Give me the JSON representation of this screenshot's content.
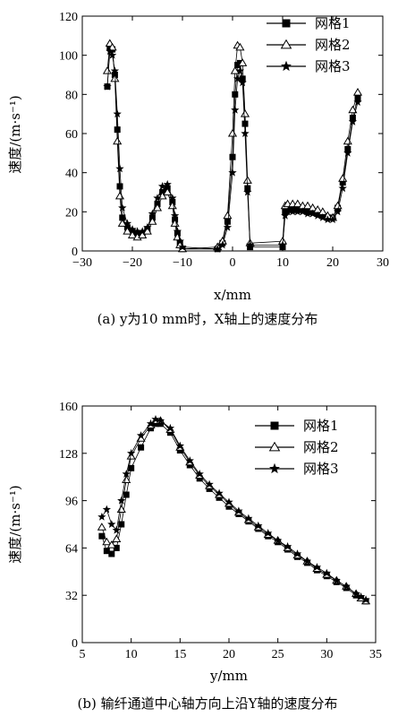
{
  "chart_data": [
    {
      "type": "scatter",
      "xlabel": "x/mm",
      "ylabel": "速度/(m·s⁻¹)",
      "caption": "(a)  y为10 mm时，X轴上的速度分布",
      "xlim": [
        -30,
        30
      ],
      "ylim": [
        0,
        120
      ],
      "xticks": [
        "−30",
        "−20",
        "−10",
        "0",
        "10",
        "20",
        "30"
      ],
      "yticks": [
        "0",
        "20",
        "40",
        "60",
        "80",
        "100",
        "120"
      ],
      "legend_position": "top-right",
      "series": [
        {
          "name": "网格1",
          "marker": "square",
          "x": [
            -25,
            -24.5,
            -24,
            -23.5,
            -23,
            -22.5,
            -22,
            -21,
            -20,
            -19,
            -18,
            -17,
            -16,
            -15,
            -14,
            -13,
            -12,
            -11.5,
            -11,
            -10.5,
            -10,
            -3,
            -2,
            -1,
            0,
            0.5,
            1,
            1.5,
            2,
            2.5,
            3,
            3.5,
            10,
            10.5,
            11,
            12,
            13,
            14,
            15,
            16,
            17,
            18,
            19,
            20,
            21,
            22,
            23,
            24,
            25
          ],
          "y": [
            84,
            104,
            103,
            90,
            62,
            33,
            17,
            12,
            10,
            9,
            9,
            11,
            17,
            24,
            30,
            32,
            25,
            16,
            9,
            4,
            1,
            1,
            4,
            15,
            48,
            80,
            95,
            96,
            88,
            65,
            32,
            2,
            2,
            20,
            21,
            21,
            21,
            21,
            20,
            20,
            19,
            18,
            17,
            17,
            22,
            35,
            52,
            68,
            78
          ]
        },
        {
          "name": "网格2",
          "marker": "triangle",
          "x": [
            -25,
            -24.5,
            -24,
            -23.5,
            -23,
            -22.5,
            -22,
            -21,
            -20,
            -19,
            -18,
            -17,
            -16,
            -15,
            -14,
            -13,
            -12,
            -11.5,
            -11,
            -10.5,
            -10,
            -3,
            -2,
            -1,
            0,
            0.5,
            1,
            1.5,
            2,
            2.5,
            3,
            3.5,
            10,
            10.5,
            11,
            12,
            13,
            14,
            15,
            16,
            17,
            18,
            19,
            20,
            21,
            22,
            23,
            24,
            25
          ],
          "y": [
            92,
            106,
            104,
            88,
            56,
            28,
            14,
            10,
            8,
            7,
            8,
            10,
            15,
            22,
            28,
            30,
            23,
            14,
            7,
            3,
            1,
            2,
            5,
            18,
            60,
            92,
            105,
            104,
            96,
            70,
            36,
            4,
            5,
            23,
            24,
            24,
            24,
            23,
            23,
            22,
            21,
            20,
            18,
            17,
            23,
            37,
            56,
            72,
            81
          ]
        },
        {
          "name": "网格3",
          "marker": "star",
          "x": [
            -25,
            -24.5,
            -24,
            -23.5,
            -23,
            -22.5,
            -22,
            -21,
            -20,
            -19,
            -18,
            -17,
            -16,
            -15,
            -14,
            -13,
            -12,
            -11.5,
            -11,
            -10.5,
            -10,
            -3,
            -2,
            -1,
            0,
            0.5,
            1,
            1.5,
            2,
            2.5,
            3,
            3.5,
            10,
            10.5,
            11,
            12,
            13,
            14,
            15,
            16,
            17,
            18,
            19,
            20,
            21,
            22,
            23,
            24,
            25
          ],
          "y": [
            84,
            102,
            100,
            92,
            70,
            42,
            22,
            14,
            11,
            10,
            10,
            12,
            19,
            27,
            33,
            34,
            27,
            18,
            10,
            5,
            2,
            1,
            3,
            12,
            40,
            72,
            88,
            92,
            86,
            60,
            30,
            3,
            3,
            18,
            20,
            20,
            20,
            20,
            19,
            19,
            18,
            17,
            16,
            16,
            20,
            32,
            50,
            66,
            76
          ]
        }
      ]
    },
    {
      "type": "scatter",
      "xlabel": "y/mm",
      "ylabel": "速度/(m·s⁻¹)",
      "caption": "(b) 输纤通道中心轴方向上沿Y轴的速度分布",
      "xlim": [
        5,
        35
      ],
      "ylim": [
        0,
        160
      ],
      "xticks": [
        "5",
        "10",
        "15",
        "20",
        "25",
        "30",
        "35"
      ],
      "yticks": [
        "0",
        "32",
        "64",
        "96",
        "128",
        "160"
      ],
      "legend_position": "top-right",
      "series": [
        {
          "name": "网格1",
          "marker": "square",
          "x": [
            7,
            7.5,
            8,
            8.5,
            9,
            9.5,
            10,
            11,
            12,
            12.5,
            13,
            14,
            15,
            16,
            17,
            18,
            19,
            20,
            21,
            22,
            23,
            24,
            25,
            26,
            27,
            28,
            29,
            30,
            31,
            32,
            33,
            33.5,
            34
          ],
          "y": [
            72,
            62,
            60,
            64,
            80,
            100,
            118,
            132,
            145,
            148,
            148,
            142,
            130,
            120,
            111,
            104,
            98,
            92,
            87,
            82,
            77,
            72,
            68,
            63,
            58,
            54,
            49,
            45,
            41,
            37,
            32,
            30,
            28
          ]
        },
        {
          "name": "网格2",
          "marker": "triangle",
          "x": [
            7,
            7.5,
            8,
            8.5,
            9,
            9.5,
            10,
            11,
            12,
            12.5,
            13,
            14,
            15,
            16,
            17,
            18,
            19,
            20,
            21,
            22,
            23,
            24,
            25,
            26,
            27,
            28,
            29,
            30,
            31,
            32,
            33,
            33.5,
            34
          ],
          "y": [
            78,
            68,
            66,
            70,
            90,
            110,
            126,
            138,
            147,
            150,
            150,
            144,
            132,
            122,
            113,
            106,
            100,
            94,
            88,
            83,
            78,
            73,
            69,
            64,
            59,
            55,
            50,
            46,
            42,
            38,
            33,
            30,
            28
          ]
        },
        {
          "name": "网格3",
          "marker": "star",
          "x": [
            7,
            7.5,
            8,
            8.5,
            9,
            9.5,
            10,
            11,
            12,
            12.5,
            13,
            14,
            15,
            16,
            17,
            18,
            19,
            20,
            21,
            22,
            23,
            24,
            25,
            26,
            27,
            28,
            29,
            30,
            31,
            32,
            33,
            33.5,
            34
          ],
          "y": [
            85,
            90,
            80,
            76,
            96,
            114,
            128,
            140,
            148,
            151,
            150,
            145,
            133,
            123,
            114,
            107,
            101,
            95,
            89,
            84,
            79,
            74,
            69,
            65,
            60,
            55,
            51,
            47,
            42,
            38,
            33,
            31,
            29
          ]
        }
      ]
    }
  ]
}
